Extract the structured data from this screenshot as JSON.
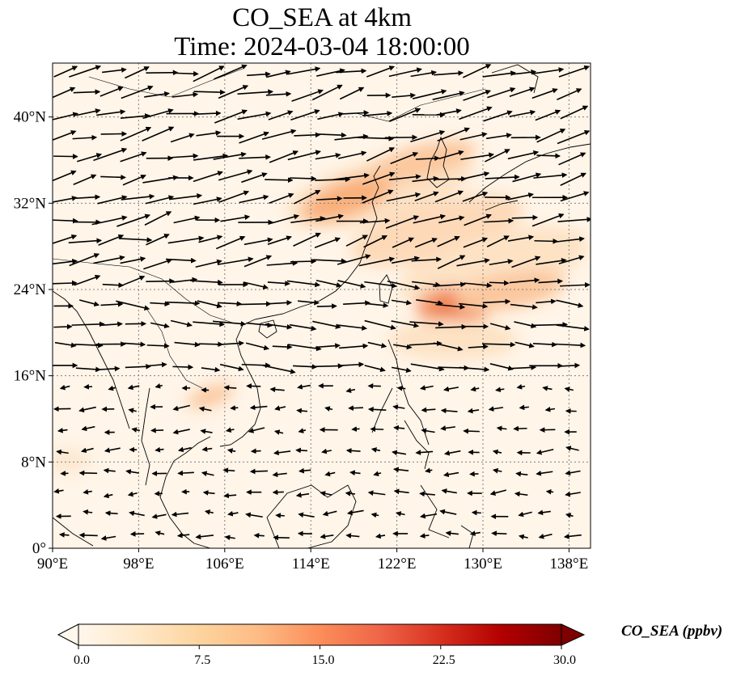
{
  "title_line1": "CO_SEA at 4km",
  "title_line2": "Time: 2024-03-04 18:00:00",
  "map": {
    "lon_range": [
      90,
      140
    ],
    "lat_range": [
      0,
      45
    ],
    "lon_ticks": [
      "90°E",
      "98°E",
      "106°E",
      "114°E",
      "122°E",
      "130°E",
      "138°E"
    ],
    "lat_ticks": [
      "0°",
      "8°N",
      "16°N",
      "24°N",
      "32°N",
      "40°N"
    ],
    "gridlines": "dotted",
    "background_color": "#fff5e8",
    "plume_colors": [
      "#fde2c4",
      "#f9b07c",
      "#ee7a4c"
    ],
    "wind_vectors": "black arrows"
  },
  "colorbar": {
    "label": "CO_SEA (ppbv)",
    "ticks": [
      "0.0",
      "7.5",
      "15.0",
      "22.5",
      "30.0"
    ],
    "range": [
      0,
      30
    ],
    "colormap": [
      "#fff7ec",
      "#fee8c8",
      "#fdd49e",
      "#fdbb84",
      "#fc8d59",
      "#ef6548",
      "#d7301f",
      "#b30000",
      "#7f0000"
    ],
    "extend": "both"
  }
}
